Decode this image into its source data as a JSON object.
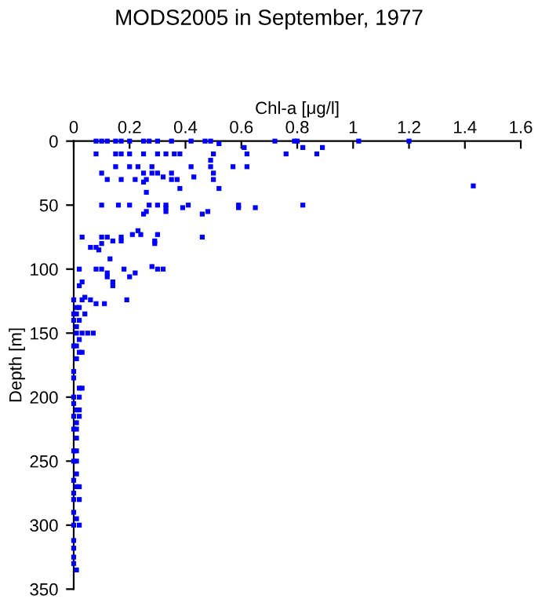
{
  "chart_data": {
    "type": "scatter",
    "title": "MODS2005 in September, 1977",
    "xlabel": "Chl-a [μg/l]",
    "ylabel": "Depth [m]",
    "xlim": [
      0,
      1.6
    ],
    "xticks": [
      0,
      0.2,
      0.4,
      0.6,
      0.8,
      1,
      1.2,
      1.4,
      1.6
    ],
    "ylim": [
      350,
      0
    ],
    "yticks": [
      0,
      50,
      100,
      150,
      200,
      250,
      300,
      350
    ],
    "marker": "square",
    "grid": false,
    "series": [
      {
        "color": "#0000ff",
        "x": [
          0.08,
          0.1,
          0.12,
          0.15,
          0.17,
          0.2,
          0.25,
          0.27,
          0.3,
          0.35,
          0.42,
          0.47,
          0.49,
          0.72,
          0.79,
          0.8,
          1.02,
          1.2,
          0.52,
          0.61,
          0.82,
          0.89,
          0.08,
          0.15,
          0.17,
          0.2,
          0.25,
          0.3,
          0.33,
          0.36,
          0.38,
          0.5,
          0.62,
          0.76,
          0.87,
          0.49,
          0.15,
          0.2,
          0.23,
          0.28,
          0.42,
          0.49,
          0.57,
          0.62,
          0.1,
          0.25,
          0.28,
          0.3,
          0.35,
          0.5,
          0.43,
          0.32,
          0.12,
          0.17,
          0.22,
          0.26,
          0.35,
          0.37,
          0.5,
          0.25,
          1.43,
          0.38,
          0.52,
          0.26,
          0.1,
          0.16,
          0.2,
          0.27,
          0.3,
          0.33,
          0.41,
          0.59,
          0.82,
          0.33,
          0.39,
          0.59,
          0.65,
          0.26,
          0.33,
          0.48,
          0.46,
          0.25,
          0.23,
          0.21,
          0.24,
          0.3,
          0.03,
          0.1,
          0.12,
          0.17,
          0.46,
          0.14,
          0.17,
          0.29,
          0.29,
          0.1,
          0.06,
          0.08,
          0.09,
          0.13,
          0.02,
          0.08,
          0.18,
          0.1,
          0.3,
          0.32,
          0.28,
          0.22,
          0.12,
          0.2,
          0.12,
          0.03,
          0.14,
          0.02,
          0.14,
          0.0,
          0.03,
          0.06,
          0.19,
          0.04,
          0.11,
          0.08,
          0.01,
          0.02,
          0.0,
          0.01,
          0.04,
          0.0,
          0.02,
          0.01,
          0.01,
          0.03,
          0.05,
          0.07,
          0.02,
          0.0,
          0.01,
          0.03,
          0.02,
          0.01,
          0.0,
          0.0,
          0.02,
          0.03,
          0.0,
          0.02,
          0.0,
          0.01,
          0.02,
          0.0,
          0.02,
          0.01,
          0.0,
          0.01,
          0.01,
          0.0,
          0.01,
          0.0,
          0.01,
          0.01,
          0.0,
          0.01,
          0.02,
          0.0,
          0.0,
          0.02,
          0.0,
          0.01,
          0.0,
          0.02,
          0.0,
          0.0,
          0.0,
          0.0,
          0.01
        ],
        "values": [
          0,
          0,
          0,
          0,
          0,
          0,
          0,
          0,
          0,
          0,
          0,
          0,
          0,
          0,
          0,
          0,
          0,
          0,
          2,
          5,
          5,
          5,
          10,
          10,
          10,
          10,
          10,
          10,
          10,
          10,
          10,
          10,
          10,
          10,
          10,
          15,
          20,
          20,
          20,
          20,
          20,
          20,
          20,
          20,
          25,
          25,
          25,
          25,
          25,
          25,
          28,
          28,
          30,
          30,
          30,
          30,
          30,
          30,
          30,
          32,
          35,
          37,
          37,
          40,
          50,
          50,
          50,
          50,
          50,
          50,
          50,
          50,
          50,
          52,
          52,
          52,
          52,
          55,
          55,
          55,
          57,
          57,
          70,
          73,
          73,
          73,
          75,
          75,
          75,
          75,
          75,
          78,
          78,
          78,
          80,
          80,
          83,
          83,
          85,
          92,
          100,
          100,
          100,
          100,
          100,
          100,
          98,
          103,
          103,
          106,
          106,
          110,
          110,
          113,
          113,
          124,
          124,
          124,
          124,
          122,
          127,
          127,
          130,
          130,
          135,
          135,
          135,
          140,
          140,
          145,
          150,
          150,
          150,
          150,
          155,
          160,
          160,
          165,
          165,
          170,
          180,
          185,
          193,
          193,
          200,
          200,
          205,
          210,
          210,
          215,
          215,
          220,
          225,
          225,
          232,
          242,
          242,
          250,
          250,
          260,
          265,
          270,
          270,
          275,
          280,
          280,
          290,
          295,
          300,
          300,
          312,
          318,
          325,
          330,
          335
        ]
      }
    ]
  }
}
